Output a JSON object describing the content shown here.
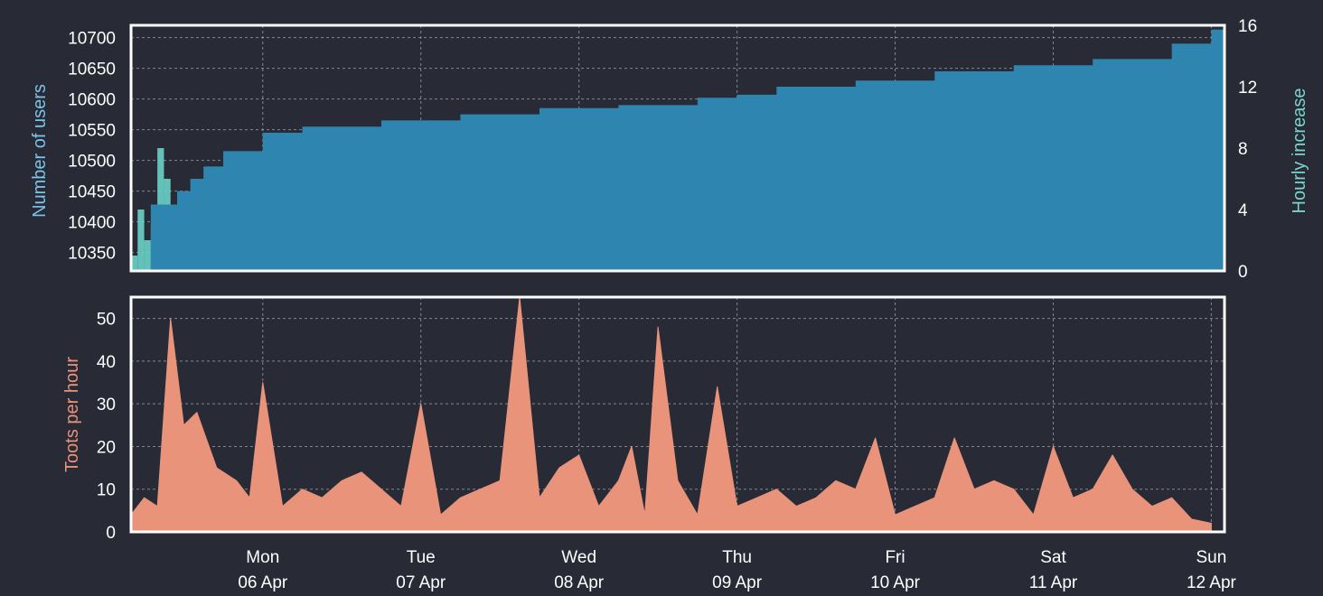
{
  "colors": {
    "background": "#282b36",
    "frame": "#ffffff",
    "grid": "#bfc3cc",
    "users_area": "#2e86b0",
    "hourly_bars": "#6ad1c9",
    "toots_area": "#e8937a",
    "users_label": "#7cc3e8",
    "hourly_label": "#7ad4cc",
    "toots_label": "#e8937a"
  },
  "chart_data": [
    {
      "type": "area",
      "ylabel": "Number of users",
      "y2label": "Hourly increase",
      "ylim": [
        10320,
        10720
      ],
      "y2lim": [
        0,
        16
      ],
      "yticks": [
        "10350",
        "10400",
        "10450",
        "10500",
        "10550",
        "10600",
        "10650",
        "10700"
      ],
      "y2ticks": [
        "0",
        "4",
        "8",
        "12",
        "16"
      ],
      "grid": true,
      "series": [
        {
          "kind": "area",
          "axis": "left",
          "x": [
            "2020-04-05 19:00",
            "2020-04-05 23:00",
            "2020-04-06 01:00",
            "2020-04-06 03:00",
            "2020-04-06 06:00",
            "2020-04-06 12:00",
            "2020-04-06 18:00",
            "2020-04-07 06:00",
            "2020-04-07 18:00",
            "2020-04-08 06:00",
            "2020-04-08 18:00",
            "2020-04-09 06:00",
            "2020-04-09 12:00",
            "2020-04-09 18:00",
            "2020-04-10 06:00",
            "2020-04-10 18:00",
            "2020-04-11 06:00",
            "2020-04-11 18:00",
            "2020-04-12 06:00",
            "2020-04-12 12:00"
          ],
          "values": [
            10428,
            10450,
            10470,
            10490,
            10515,
            10545,
            10555,
            10565,
            10575,
            10585,
            10590,
            10602,
            10607,
            10620,
            10630,
            10645,
            10655,
            10665,
            10690,
            10713
          ]
        },
        {
          "kind": "bar",
          "axis": "right",
          "x": [
            "2020-04-05 16:00",
            "2020-04-05 17:00",
            "2020-04-05 18:00",
            "2020-04-05 19:00",
            "2020-04-05 20:00",
            "2020-04-05 21:00",
            "2020-04-05 22:00",
            "2020-04-05 23:00",
            "2020-04-06 00:00",
            "2020-04-06 01:00",
            "2020-04-06 02:00",
            "2020-04-06 03:00",
            "2020-04-06 04:00",
            "2020-04-06 06:00",
            "2020-04-06 08:00",
            "2020-04-06 10:00",
            "2020-04-06 12:00",
            "2020-04-06 14:00",
            "2020-04-06 18:00",
            "2020-04-07 02:00",
            "2020-04-07 12:00",
            "2020-04-08 00:00",
            "2020-04-08 12:00",
            "2020-04-09 00:00",
            "2020-04-09 12:00",
            "2020-04-10 00:00",
            "2020-04-10 12:00",
            "2020-04-11 00:00",
            "2020-04-11 12:00",
            "2020-04-12 00:00",
            "2020-04-12 12:00"
          ],
          "values": [
            1,
            4,
            2,
            3,
            8,
            6,
            3,
            1,
            2,
            5,
            3,
            2,
            3,
            2,
            4,
            3,
            1,
            2,
            1,
            2,
            2,
            1,
            2,
            1,
            2,
            1,
            2,
            2,
            1,
            2,
            1
          ]
        }
      ]
    },
    {
      "type": "area",
      "ylabel": "Toots per hour",
      "ylim": [
        0,
        55
      ],
      "yticks": [
        "0",
        "10",
        "20",
        "30",
        "40",
        "50"
      ],
      "grid": true,
      "x_ticks": [
        {
          "day": "Mon",
          "date": "06 Apr"
        },
        {
          "day": "Tue",
          "date": "07 Apr"
        },
        {
          "day": "Wed",
          "date": "08 Apr"
        },
        {
          "day": "Thu",
          "date": "09 Apr"
        },
        {
          "day": "Fri",
          "date": "10 Apr"
        },
        {
          "day": "Sat",
          "date": "11 Apr"
        },
        {
          "day": "Sun",
          "date": "12 Apr"
        }
      ],
      "series": [
        {
          "kind": "area",
          "x": [
            "2020-04-05 16:00",
            "2020-04-05 18:00",
            "2020-04-05 20:00",
            "2020-04-05 22:00",
            "2020-04-06 00:00",
            "2020-04-06 02:00",
            "2020-04-06 05:00",
            "2020-04-06 08:00",
            "2020-04-06 10:00",
            "2020-04-06 12:00",
            "2020-04-06 15:00",
            "2020-04-06 18:00",
            "2020-04-06 21:00",
            "2020-04-07 00:00",
            "2020-04-07 03:00",
            "2020-04-07 06:00",
            "2020-04-07 09:00",
            "2020-04-07 12:00",
            "2020-04-07 15:00",
            "2020-04-07 18:00",
            "2020-04-07 21:00",
            "2020-04-08 00:00",
            "2020-04-08 03:00",
            "2020-04-08 06:00",
            "2020-04-08 09:00",
            "2020-04-08 12:00",
            "2020-04-08 15:00",
            "2020-04-08 18:00",
            "2020-04-08 20:00",
            "2020-04-08 22:00",
            "2020-04-09 00:00",
            "2020-04-09 03:00",
            "2020-04-09 06:00",
            "2020-04-09 09:00",
            "2020-04-09 12:00",
            "2020-04-09 15:00",
            "2020-04-09 18:00",
            "2020-04-09 21:00",
            "2020-04-10 00:00",
            "2020-04-10 03:00",
            "2020-04-10 06:00",
            "2020-04-10 09:00",
            "2020-04-10 12:00",
            "2020-04-10 15:00",
            "2020-04-10 18:00",
            "2020-04-10 21:00",
            "2020-04-11 00:00",
            "2020-04-11 03:00",
            "2020-04-11 06:00",
            "2020-04-11 09:00",
            "2020-04-11 12:00",
            "2020-04-11 15:00",
            "2020-04-11 18:00",
            "2020-04-11 21:00",
            "2020-04-12 00:00",
            "2020-04-12 03:00",
            "2020-04-12 06:00",
            "2020-04-12 09:00",
            "2020-04-12 12:00"
          ],
          "values": [
            4,
            8,
            6,
            50,
            25,
            28,
            15,
            12,
            8,
            35,
            6,
            10,
            8,
            12,
            14,
            10,
            6,
            30,
            4,
            8,
            10,
            12,
            55,
            8,
            15,
            18,
            6,
            12,
            20,
            4,
            48,
            12,
            4,
            34,
            6,
            8,
            10,
            6,
            8,
            12,
            10,
            22,
            4,
            6,
            8,
            22,
            10,
            12,
            10,
            4,
            20,
            8,
            10,
            18,
            10,
            6,
            8,
            3,
            2
          ]
        }
      ]
    }
  ]
}
